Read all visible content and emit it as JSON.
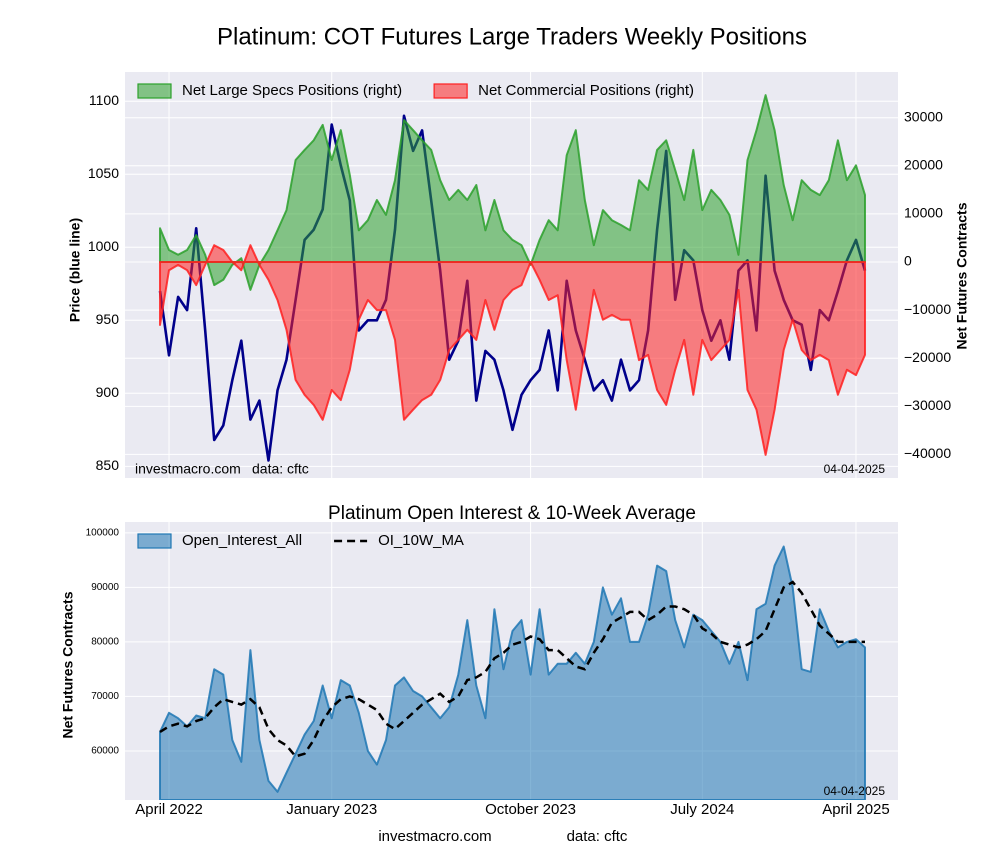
{
  "chart_data": [
    {
      "type": "combo",
      "title": "Platinum: COT Futures Large Traders Weekly Positions",
      "ylabel": "Price (blue line)",
      "y2label": "Net Futures Contracts",
      "ylim": [
        842,
        1120
      ],
      "yticks": [
        850,
        900,
        950,
        1000,
        1050,
        1100
      ],
      "y2lim": [
        -44900,
        39500
      ],
      "y2ticks": [
        {
          "value": -40000,
          "label": "−40000"
        },
        {
          "value": -30000,
          "label": "−30000"
        },
        {
          "value": -20000,
          "label": "−20000"
        },
        {
          "value": -10000,
          "label": "−10000"
        },
        0,
        10000,
        20000,
        30000
      ],
      "grid": true,
      "legend": "upper left",
      "source_notes": [
        "investmacro.com",
        "data: cftc"
      ],
      "date_note": "04-04-2025",
      "price": {
        "color": "#00008b",
        "values": [
          970,
          926,
          966,
          957,
          1013,
          943,
          868,
          878,
          909,
          936,
          882,
          895,
          854,
          902,
          923,
          964,
          1005,
          1012,
          1026,
          1084,
          1056,
          1032,
          943,
          950,
          950,
          964,
          1012,
          1090,
          1066,
          1080,
          1032,
          984,
          923,
          936,
          977,
          895,
          929,
          923,
          902,
          875,
          899,
          909,
          916,
          943,
          902,
          977,
          943,
          923,
          902,
          909,
          895,
          923,
          902,
          909,
          943,
          1012,
          1066,
          964,
          998,
          991,
          957,
          936,
          950,
          923,
          984,
          991,
          943,
          1049,
          984,
          964,
          950,
          947,
          916,
          957,
          950,
          970,
          991,
          1005,
          984
        ]
      },
      "series": [
        {
          "name": "Net Large Specs Positions (right)",
          "kind": "area",
          "axis": "y2",
          "color": "#2ca02c",
          "values": [
            7000,
            2500,
            1500,
            2500,
            5600,
            1500,
            -4800,
            -3700,
            -600,
            800,
            -5800,
            -600,
            2500,
            6600,
            10800,
            21200,
            23300,
            25300,
            28500,
            21200,
            27400,
            18100,
            6600,
            8700,
            12900,
            9800,
            17000,
            29500,
            27400,
            25300,
            23300,
            17000,
            12900,
            15000,
            12900,
            16000,
            6600,
            12900,
            6600,
            4600,
            3500,
            -600,
            4600,
            8700,
            6600,
            22200,
            27400,
            12900,
            3500,
            10800,
            8700,
            7700,
            6600,
            17000,
            15000,
            23300,
            25300,
            19100,
            12900,
            23300,
            10800,
            15000,
            12900,
            9800,
            1500,
            21200,
            27400,
            34700,
            27400,
            16000,
            8700,
            17000,
            15000,
            13900,
            17000,
            25300,
            17000,
            20100,
            13900
          ]
        },
        {
          "name": "Net Commercial Positions (right)",
          "kind": "area",
          "axis": "y2",
          "color": "#ff2020",
          "values": [
            -13100,
            -1700,
            -600,
            -1700,
            -4800,
            -600,
            3500,
            2500,
            0,
            -1700,
            3500,
            -600,
            -3700,
            -7900,
            -14100,
            -24500,
            -27600,
            -29700,
            -32800,
            -26600,
            -28700,
            -22400,
            -12000,
            -7900,
            -10000,
            -10000,
            -16200,
            -32800,
            -30700,
            -28700,
            -27600,
            -24500,
            -18300,
            -16200,
            -14100,
            -16200,
            -7900,
            -14100,
            -7900,
            -5800,
            -4800,
            0,
            -3700,
            -7900,
            -6900,
            -20400,
            -30700,
            -18300,
            -5800,
            -12000,
            -11000,
            -12000,
            -12000,
            -20400,
            -19300,
            -26600,
            -29700,
            -22400,
            -16200,
            -27600,
            -16200,
            -20400,
            -18300,
            -16200,
            -5800,
            -26600,
            -30700,
            -40100,
            -30700,
            -18300,
            -12000,
            -18300,
            -20400,
            -19300,
            -20400,
            -27600,
            -22400,
            -23500,
            -19300
          ]
        }
      ]
    },
    {
      "type": "combo",
      "title": "Platinum Open Interest & 10-Week Average",
      "ylabel": "Net Futures Contracts",
      "ylim": [
        51000,
        102000
      ],
      "yticks": [
        60000,
        70000,
        80000,
        90000,
        100000
      ],
      "grid": true,
      "legend": "upper left",
      "date_note": "04-04-2025",
      "categories": [
        null,
        "April 2022",
        null,
        null,
        null,
        null,
        null,
        null,
        null,
        null,
        null,
        null,
        null,
        null,
        null,
        null,
        null,
        null,
        null,
        "January 2023",
        null,
        null,
        null,
        null,
        null,
        null,
        null,
        null,
        null,
        null,
        null,
        null,
        null,
        null,
        null,
        null,
        null,
        null,
        null,
        null,
        null,
        "October 2023",
        null,
        null,
        null,
        null,
        null,
        null,
        null,
        null,
        null,
        null,
        null,
        null,
        null,
        null,
        null,
        null,
        null,
        null,
        "July 2024",
        null,
        null,
        null,
        null,
        null,
        null,
        null,
        null,
        null,
        null,
        null,
        null,
        null,
        null,
        null,
        null,
        "April 2025",
        null
      ],
      "series": [
        {
          "name": "Open_Interest_All",
          "kind": "area",
          "color": "#1f77b4",
          "values": [
            63500,
            67000,
            66000,
            64500,
            66500,
            66000,
            75000,
            74000,
            62000,
            58000,
            78500,
            62000,
            54500,
            52500,
            56000,
            59500,
            63000,
            65500,
            72000,
            66000,
            73000,
            72000,
            67000,
            60000,
            57500,
            62000,
            72000,
            73500,
            71000,
            70000,
            68000,
            66000,
            68000,
            74000,
            84000,
            72000,
            66000,
            86000,
            75000,
            82000,
            84000,
            74000,
            86000,
            74000,
            76000,
            76000,
            78000,
            76000,
            80000,
            90000,
            85000,
            88000,
            80000,
            80000,
            85000,
            94000,
            93000,
            84000,
            79000,
            85000,
            84000,
            82000,
            80000,
            76000,
            80000,
            73000,
            86000,
            87000,
            94000,
            97500,
            90000,
            75000,
            74500,
            86000,
            82000,
            79000,
            80000,
            80500,
            79000
          ]
        },
        {
          "name": "OI_10W_MA",
          "kind": "line",
          "style": "dashed",
          "color": "#000000",
          "values": [
            63500,
            64500,
            65000,
            64500,
            65500,
            66000,
            68000,
            69500,
            69000,
            68500,
            69500,
            68000,
            64000,
            62000,
            61000,
            59000,
            59500,
            62000,
            65500,
            68000,
            69500,
            70000,
            69500,
            68500,
            67500,
            65000,
            64000,
            65500,
            67000,
            68500,
            69500,
            70500,
            69000,
            70000,
            73000,
            73500,
            74500,
            77000,
            78000,
            79500,
            80000,
            81000,
            80500,
            78500,
            78500,
            77000,
            75500,
            75000,
            78000,
            80500,
            83500,
            84500,
            85500,
            85500,
            84000,
            85000,
            86500,
            86500,
            86000,
            85000,
            82500,
            81500,
            80000,
            79500,
            79000,
            79500,
            80500,
            82000,
            86000,
            90000,
            91000,
            89000,
            86000,
            83000,
            81500,
            80000,
            80000,
            80000,
            80000
          ]
        }
      ]
    }
  ],
  "footer": {
    "site": "investmacro.com",
    "source": "data: cftc"
  }
}
